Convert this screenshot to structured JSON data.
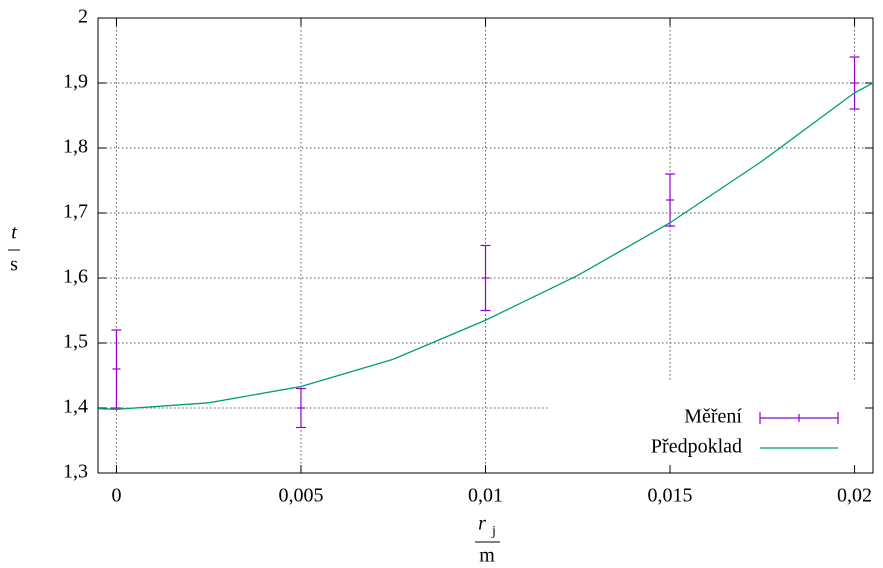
{
  "chart_data": {
    "type": "errorbar-fit",
    "xlabel": {
      "numerator": "r",
      "subscript": "j",
      "denominator": "m"
    },
    "ylabel": {
      "numerator": "t",
      "denominator": "s"
    },
    "xlim": [
      -0.0005,
      0.0205
    ],
    "ylim": [
      1.3,
      2
    ],
    "xticks": [
      0,
      {
        "value": 0.005,
        "label": "0,005"
      },
      {
        "value": 0.01,
        "label": "0,01"
      },
      {
        "value": 0.015,
        "label": "0,015"
      },
      {
        "value": 0.02,
        "label": "0,02"
      }
    ],
    "yticks": [
      {
        "value": 1.3,
        "label": "1,3"
      },
      {
        "value": 1.4,
        "label": "1,4"
      },
      {
        "value": 1.5,
        "label": "1,5"
      },
      {
        "value": 1.6,
        "label": "1,6"
      },
      {
        "value": 1.7,
        "label": "1,7"
      },
      {
        "value": 1.8,
        "label": "1,8"
      },
      {
        "value": 1.9,
        "label": "1,9"
      },
      2
    ],
    "grid": true,
    "legend": "lower right",
    "series": [
      {
        "name": "Měření",
        "kind": "errorbar",
        "color": "#9400d3",
        "x": [
          0,
          0.005,
          0.01,
          0.015,
          0.02
        ],
        "values": [
          1.46,
          1.4,
          1.6,
          1.72,
          1.9
        ],
        "errors": [
          0.06,
          0.03,
          0.05,
          0.04,
          0.04
        ]
      },
      {
        "name": "Předpoklad",
        "kind": "line",
        "color": "#009e73",
        "x": [
          -0.0005,
          0,
          0.0025,
          0.005,
          0.0075,
          0.01,
          0.0125,
          0.015,
          0.0175,
          0.02,
          0.0205
        ],
        "values": [
          1.399,
          1.398,
          1.408,
          1.433,
          1.475,
          1.535,
          1.604,
          1.685,
          1.78,
          1.885,
          1.9
        ]
      }
    ]
  }
}
